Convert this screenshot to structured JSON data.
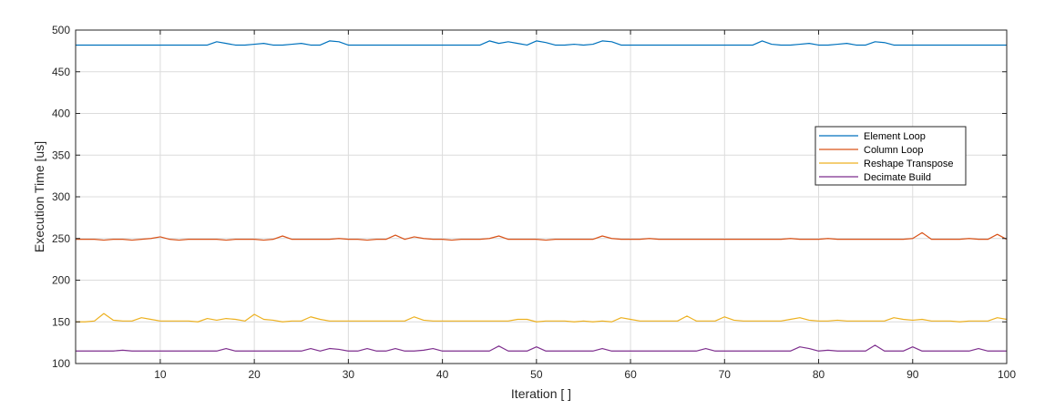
{
  "chart_data": {
    "type": "line",
    "title": "",
    "xlabel": "Iteration [ ]",
    "ylabel": "Execution Time [us]",
    "xlim": [
      1,
      100
    ],
    "ylim": [
      100,
      500
    ],
    "xticks": [
      10,
      20,
      30,
      40,
      50,
      60,
      70,
      80,
      90,
      100
    ],
    "yticks": [
      100,
      150,
      200,
      250,
      300,
      350,
      400,
      450,
      500
    ],
    "grid": true,
    "legend_position": "right",
    "x": [
      1,
      2,
      3,
      4,
      5,
      6,
      7,
      8,
      9,
      10,
      11,
      12,
      13,
      14,
      15,
      16,
      17,
      18,
      19,
      20,
      21,
      22,
      23,
      24,
      25,
      26,
      27,
      28,
      29,
      30,
      31,
      32,
      33,
      34,
      35,
      36,
      37,
      38,
      39,
      40,
      41,
      42,
      43,
      44,
      45,
      46,
      47,
      48,
      49,
      50,
      51,
      52,
      53,
      54,
      55,
      56,
      57,
      58,
      59,
      60,
      61,
      62,
      63,
      64,
      65,
      66,
      67,
      68,
      69,
      70,
      71,
      72,
      73,
      74,
      75,
      76,
      77,
      78,
      79,
      80,
      81,
      82,
      83,
      84,
      85,
      86,
      87,
      88,
      89,
      90,
      91,
      92,
      93,
      94,
      95,
      96,
      97,
      98,
      99,
      100
    ],
    "series": [
      {
        "name": "Element Loop",
        "color": "#0072BD",
        "values": [
          482,
          482,
          482,
          482,
          482,
          482,
          482,
          482,
          482,
          482,
          482,
          482,
          482,
          482,
          482,
          486,
          484,
          482,
          482,
          483,
          484,
          482,
          482,
          483,
          484,
          482,
          482,
          487,
          486,
          482,
          482,
          482,
          482,
          482,
          482,
          482,
          482,
          482,
          482,
          482,
          482,
          482,
          482,
          482,
          487,
          484,
          486,
          484,
          482,
          487,
          485,
          482,
          482,
          483,
          482,
          483,
          487,
          486,
          482,
          482,
          482,
          482,
          482,
          482,
          482,
          482,
          482,
          482,
          482,
          482,
          482,
          482,
          482,
          487,
          483,
          482,
          482,
          483,
          484,
          482,
          482,
          483,
          484,
          482,
          482,
          486,
          485,
          482,
          482,
          482,
          482,
          482,
          482,
          482,
          482,
          482,
          482,
          482,
          482,
          482
        ]
      },
      {
        "name": "Column Loop",
        "color": "#D95319",
        "values": [
          249,
          249,
          249,
          248,
          249,
          249,
          248,
          249,
          250,
          252,
          249,
          248,
          249,
          249,
          249,
          249,
          248,
          249,
          249,
          249,
          248,
          249,
          253,
          249,
          249,
          249,
          249,
          249,
          250,
          249,
          249,
          248,
          249,
          249,
          254,
          249,
          252,
          250,
          249,
          249,
          248,
          249,
          249,
          249,
          250,
          253,
          249,
          249,
          249,
          249,
          248,
          249,
          249,
          249,
          249,
          249,
          253,
          250,
          249,
          249,
          249,
          250,
          249,
          249,
          249,
          249,
          249,
          249,
          249,
          249,
          249,
          249,
          249,
          249,
          249,
          249,
          250,
          249,
          249,
          249,
          250,
          249,
          249,
          249,
          249,
          249,
          249,
          249,
          249,
          250,
          257,
          249,
          249,
          249,
          249,
          250,
          249,
          249,
          255,
          249
        ]
      },
      {
        "name": "Reshape Transpose",
        "color": "#EDB120",
        "values": [
          150,
          150,
          151,
          160,
          152,
          151,
          151,
          155,
          153,
          151,
          151,
          151,
          151,
          150,
          154,
          152,
          154,
          153,
          151,
          159,
          153,
          152,
          150,
          151,
          151,
          156,
          153,
          151,
          151,
          151,
          151,
          151,
          151,
          151,
          151,
          151,
          156,
          152,
          151,
          151,
          151,
          151,
          151,
          151,
          151,
          151,
          151,
          153,
          153,
          150,
          151,
          151,
          151,
          150,
          151,
          150,
          151,
          150,
          155,
          153,
          151,
          151,
          151,
          151,
          151,
          157,
          151,
          151,
          151,
          156,
          152,
          151,
          151,
          151,
          151,
          151,
          153,
          155,
          152,
          151,
          151,
          152,
          151,
          151,
          151,
          151,
          151,
          155,
          153,
          152,
          153,
          151,
          151,
          151,
          150,
          151,
          151,
          151,
          155,
          153
        ]
      },
      {
        "name": "Decimate Build",
        "color": "#7E2F8E",
        "values": [
          115,
          115,
          115,
          115,
          115,
          116,
          115,
          115,
          115,
          115,
          115,
          115,
          115,
          115,
          115,
          115,
          118,
          115,
          115,
          115,
          115,
          115,
          115,
          115,
          115,
          118,
          115,
          118,
          117,
          115,
          115,
          118,
          115,
          115,
          118,
          115,
          115,
          116,
          118,
          115,
          115,
          115,
          115,
          115,
          115,
          121,
          115,
          115,
          115,
          120,
          115,
          115,
          115,
          115,
          115,
          115,
          118,
          115,
          115,
          115,
          115,
          115,
          115,
          115,
          115,
          115,
          115,
          118,
          115,
          115,
          115,
          115,
          115,
          115,
          115,
          115,
          115,
          120,
          118,
          115,
          116,
          115,
          115,
          115,
          115,
          122,
          115,
          115,
          115,
          120,
          115,
          115,
          115,
          115,
          115,
          115,
          118,
          115,
          115,
          115
        ]
      }
    ]
  }
}
